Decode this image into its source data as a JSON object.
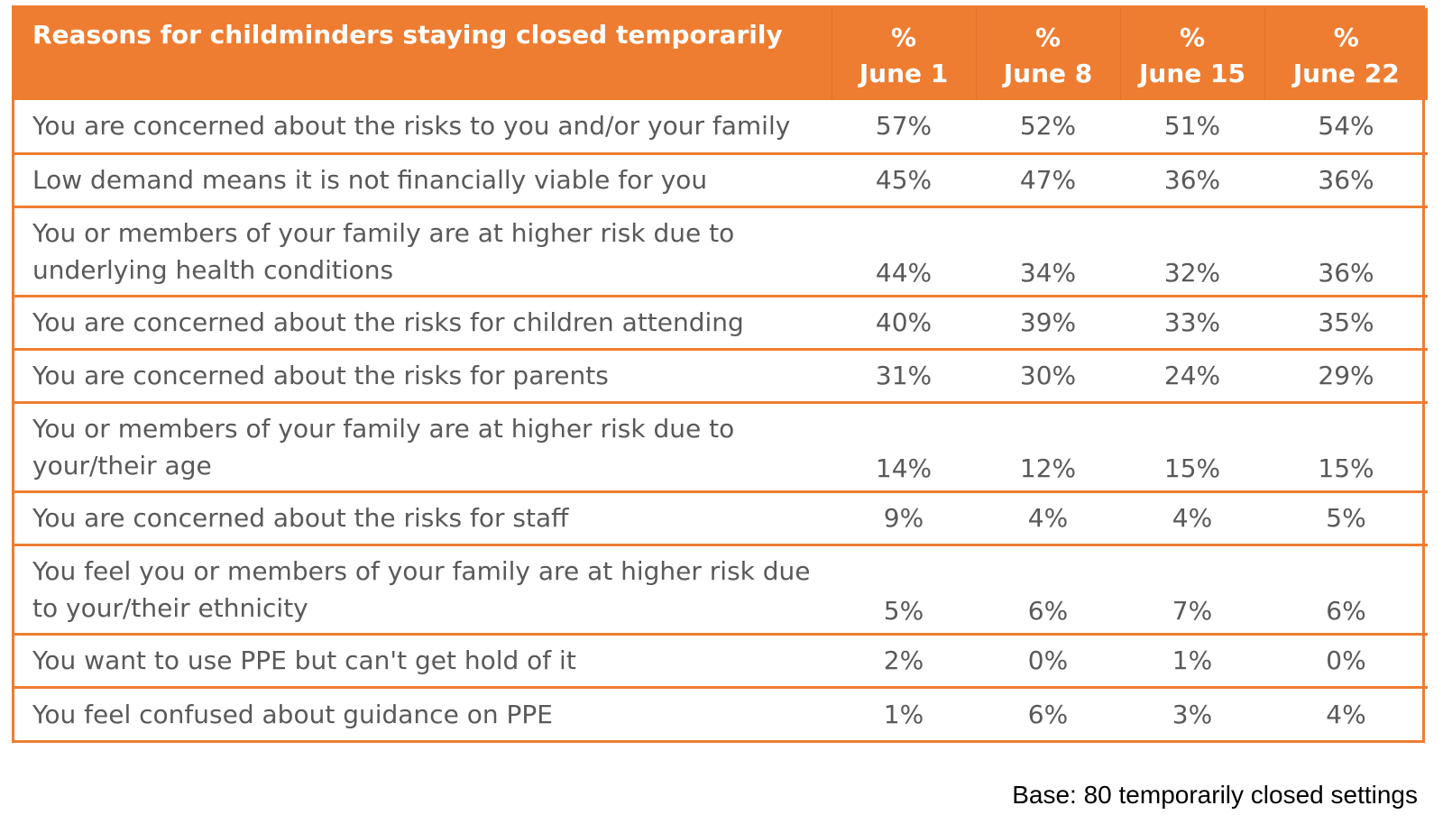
{
  "chart_data": {
    "type": "table",
    "title": "Reasons for childminders staying closed temporarily",
    "columns": [
      {
        "unit": "%",
        "label": "June 1"
      },
      {
        "unit": "%",
        "label": "June 8"
      },
      {
        "unit": "%",
        "label": "June 15"
      },
      {
        "unit": "%",
        "label": "June 22"
      }
    ],
    "rows": [
      {
        "reason": "You are concerned about the risks to you and/or your family",
        "values": [
          "57%",
          "52%",
          "51%",
          "54%"
        ],
        "lines": 1
      },
      {
        "reason": "Low demand means it is not financially viable for you",
        "values": [
          "45%",
          "47%",
          "36%",
          "36%"
        ],
        "lines": 1
      },
      {
        "reason": "You or members of your family are at higher risk due to underlying health conditions",
        "values": [
          "44%",
          "34%",
          "32%",
          "36%"
        ],
        "lines": 2
      },
      {
        "reason": "You are concerned about the risks for children attending",
        "values": [
          "40%",
          "39%",
          "33%",
          "35%"
        ],
        "lines": 1
      },
      {
        "reason": "You are concerned about the risks for parents",
        "values": [
          "31%",
          "30%",
          "24%",
          "29%"
        ],
        "lines": 1
      },
      {
        "reason": "You or members of your family are at higher risk due to your/their age",
        "values": [
          "14%",
          "12%",
          "15%",
          "15%"
        ],
        "lines": 2
      },
      {
        "reason": "You are concerned about the risks for staff",
        "values": [
          "9%",
          "4%",
          "4%",
          "5%"
        ],
        "lines": 1
      },
      {
        "reason": "You feel you or members of your family are at higher risk due to your/their ethnicity",
        "values": [
          "5%",
          "6%",
          "7%",
          "6%"
        ],
        "lines": 2
      },
      {
        "reason": "You want to use PPE but can't get hold of it",
        "values": [
          "2%",
          "0%",
          "1%",
          "0%"
        ],
        "lines": 1
      },
      {
        "reason": "You feel confused about guidance on PPE",
        "values": [
          "1%",
          "6%",
          "3%",
          "4%"
        ],
        "lines": 1
      }
    ],
    "note": "Base: 80 temporarily closed settings",
    "colors": {
      "header_bg": "#ee7d31",
      "header_text": "#ffffff",
      "row_border": "#ee7d31",
      "body_text": "#595959"
    }
  }
}
